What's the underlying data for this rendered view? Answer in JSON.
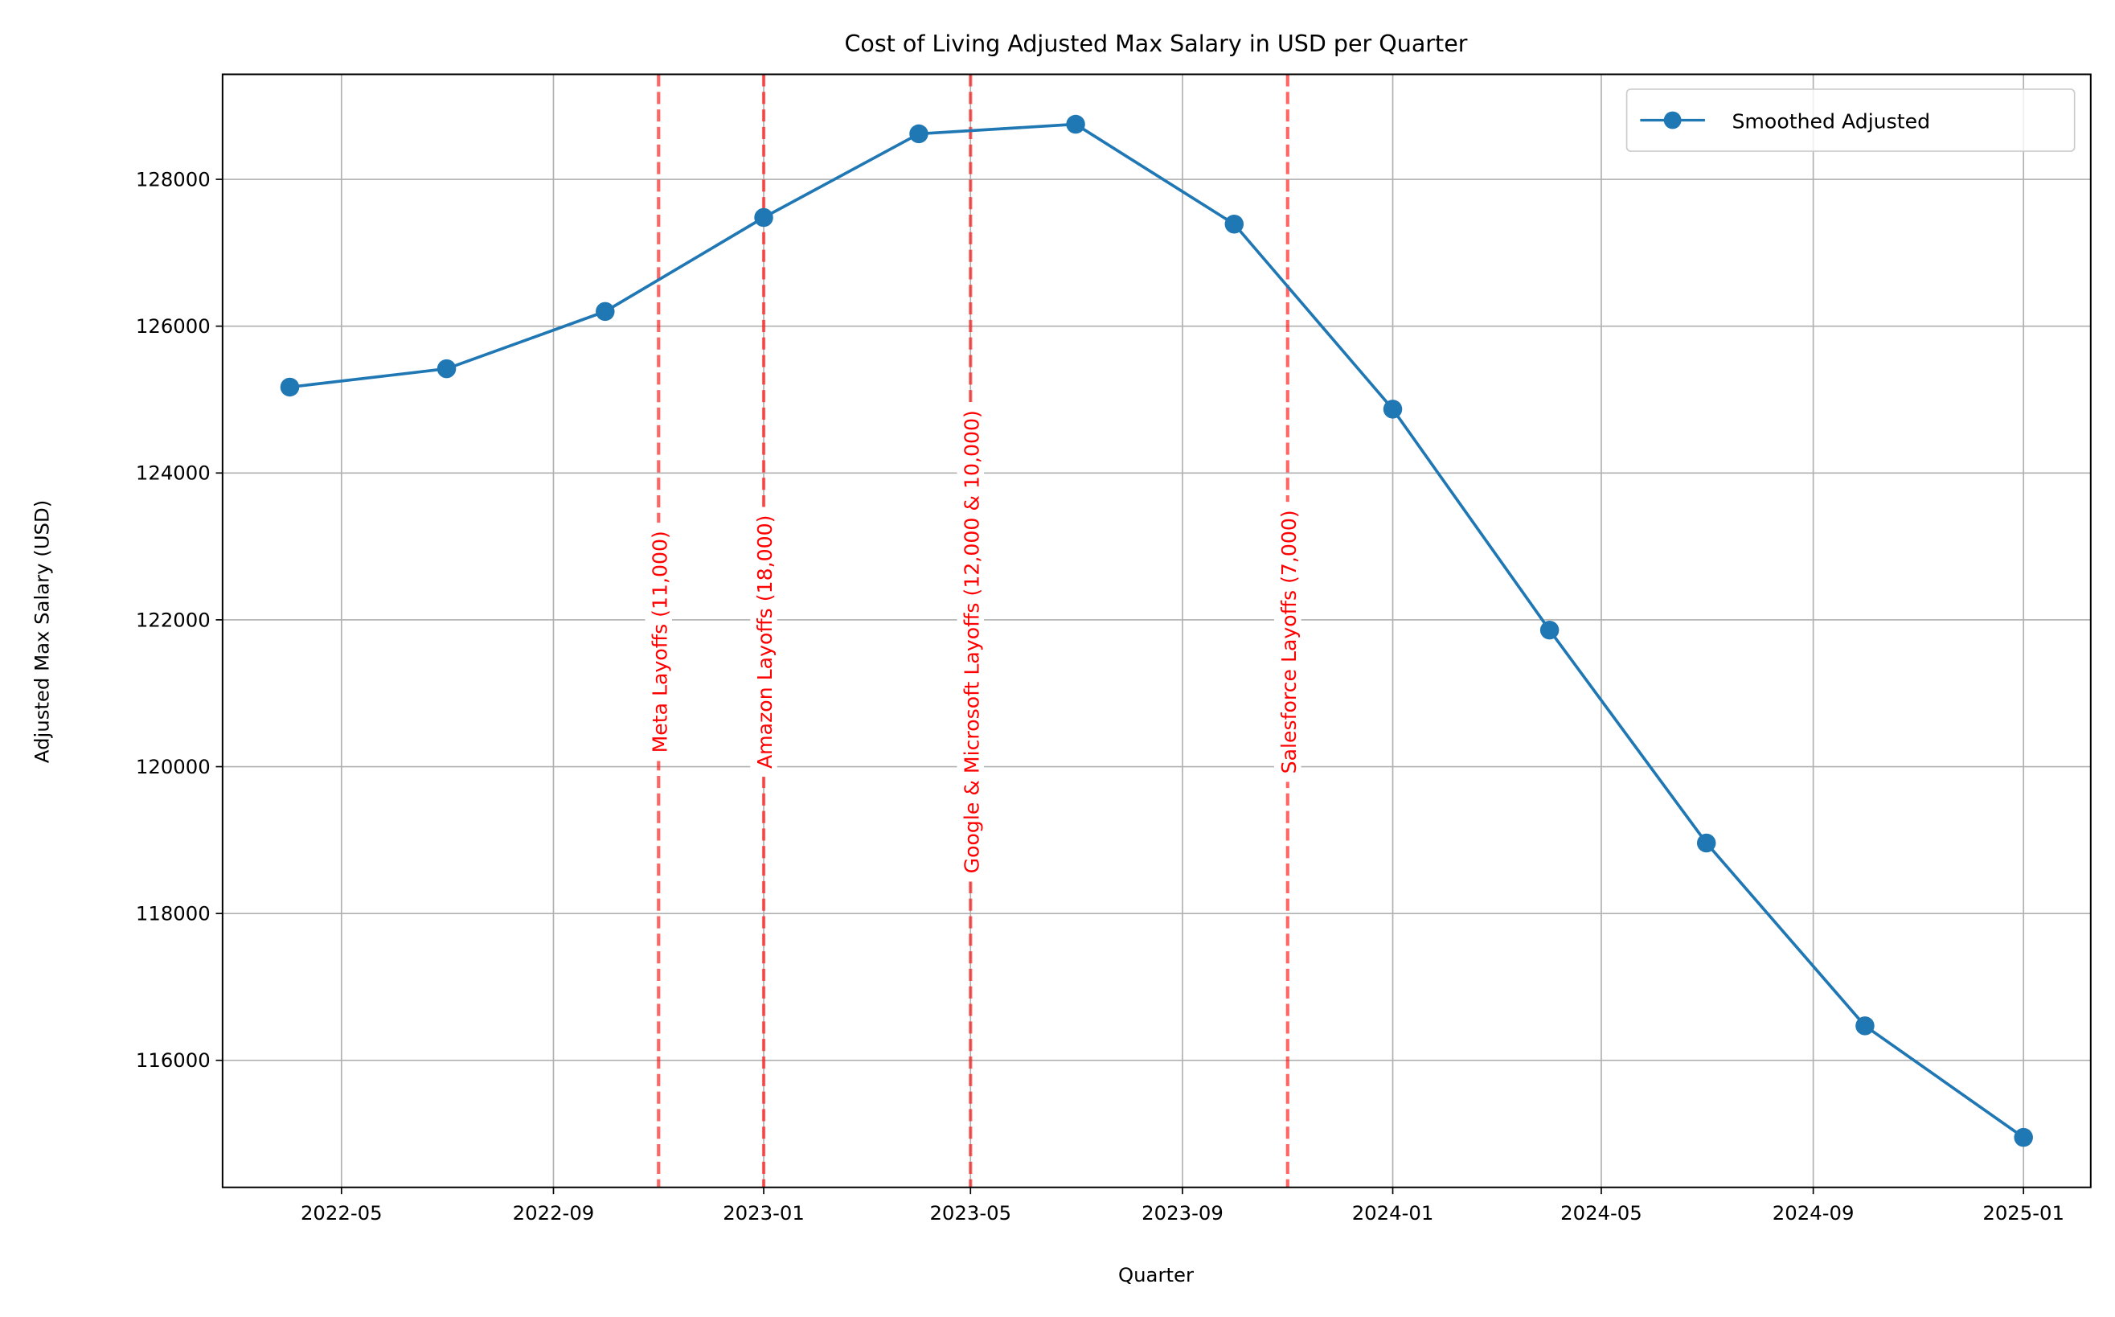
{
  "chart_data": {
    "type": "line",
    "title": "Cost of Living Adjusted Max Salary in USD per Quarter",
    "xlabel": "Quarter",
    "ylabel": "Adjusted Max Salary (USD)",
    "x_ticks": [
      "2022-05",
      "2022-09",
      "2023-01",
      "2023-05",
      "2023-09",
      "2024-01",
      "2024-05",
      "2024-09",
      "2025-01"
    ],
    "y_ticks": [
      116000,
      118000,
      120000,
      122000,
      124000,
      126000,
      128000
    ],
    "xlim": [
      "2022-02-21",
      "2025-02-09"
    ],
    "ylim": [
      114270,
      129430
    ],
    "grid": true,
    "legend_position": "top-right",
    "series": [
      {
        "name": "Smoothed Adjusted",
        "color": "#1f77b4",
        "marker": "circle",
        "x": [
          "2022-04-01",
          "2022-07-01",
          "2022-10-01",
          "2023-01-01",
          "2023-04-01",
          "2023-07-01",
          "2023-10-01",
          "2024-01-01",
          "2024-04-01",
          "2024-07-01",
          "2024-10-01",
          "2025-01-01"
        ],
        "y": [
          125170,
          125420,
          126200,
          127480,
          128620,
          128750,
          127390,
          124870,
          121860,
          118960,
          116470,
          114950
        ]
      }
    ],
    "annotations": [
      {
        "x": "2022-11-01",
        "label": "Meta Layoffs (11,000)"
      },
      {
        "x": "2023-01-01",
        "label": "Amazon Layoffs (18,000)"
      },
      {
        "x": "2023-05-01",
        "label": "Google & Microsoft Layoffs (12,000 & 10,000)"
      },
      {
        "x": "2023-11-01",
        "label": "Salesforce Layoffs (7,000)"
      }
    ],
    "annotation_color": "#ff0000",
    "annotation_line_style": "dashed"
  }
}
